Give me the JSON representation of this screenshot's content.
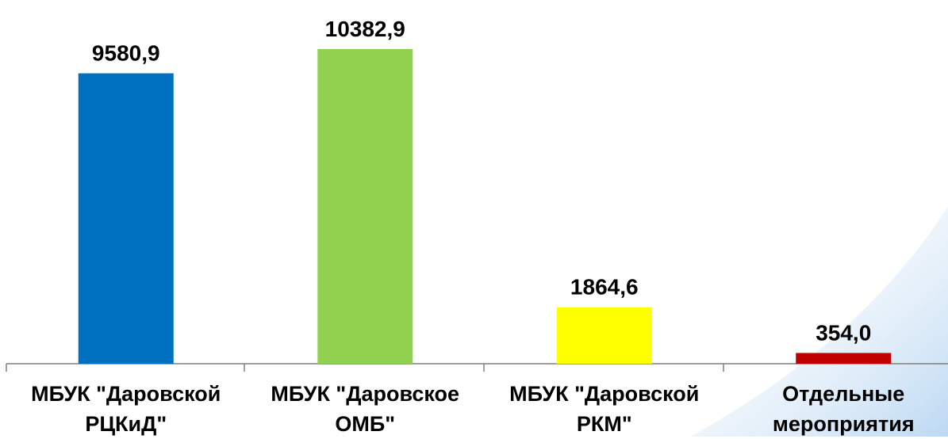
{
  "chart_data": {
    "type": "bar",
    "categories": [
      "МБУК \"Даровской РЦКиД\"",
      "МБУК \"Даровское ОМБ\"",
      "МБУК \"Даровской РКМ\"",
      "Отдельные мероприятия"
    ],
    "values": [
      9580.9,
      10382.9,
      1864.6,
      354.0
    ],
    "value_labels": [
      "9580,9",
      "10382,9",
      "1864,6",
      "354,0"
    ],
    "colors": [
      "#0070c0",
      "#92d050",
      "#ffff00",
      "#c00000"
    ],
    "ylim": [
      0,
      12000
    ]
  }
}
